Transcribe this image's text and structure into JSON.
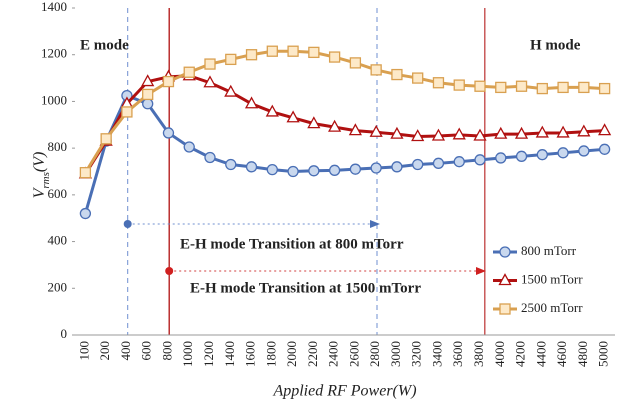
{
  "chart_data": {
    "type": "line",
    "y_label": {
      "main": "V",
      "sub": "rms",
      "rest": "(V)"
    },
    "x_label": "Applied RF Power(W)",
    "annotations": [
      "E mode",
      "H mode",
      "E-H mode Transition at 800 mTorr",
      "E-H mode Transition at 1500 mTorr"
    ],
    "categories": [
      "100",
      "200",
      "400",
      "600",
      "800",
      "1000",
      "1200",
      "1400",
      "1600",
      "1800",
      "2000",
      "2200",
      "2400",
      "2600",
      "2800",
      "3000",
      "3200",
      "3400",
      "3600",
      "3800",
      "4000",
      "4200",
      "4400",
      "4600",
      "4800",
      "5000"
    ],
    "series": [
      {
        "name": "800 mTorr",
        "color": "#4a6fb5",
        "marker": "circle",
        "marker_fill": "#c9d8ee",
        "values": [
          520,
          830,
          1025,
          990,
          865,
          805,
          760,
          730,
          720,
          708,
          700,
          703,
          705,
          710,
          715,
          720,
          730,
          735,
          742,
          750,
          758,
          765,
          772,
          780,
          788,
          795
        ]
      },
      {
        "name": "1500 mTorr",
        "color": "#b01010",
        "marker": "triangle",
        "marker_fill": "#ffffff",
        "values": [
          690,
          830,
          990,
          1085,
          1105,
          1110,
          1080,
          1040,
          990,
          955,
          930,
          905,
          890,
          875,
          868,
          860,
          850,
          852,
          857,
          852,
          860,
          860,
          865,
          865,
          870,
          875
        ]
      },
      {
        "name": "2500 mTorr",
        "color": "#d9a050",
        "marker": "square",
        "marker_fill": "#fde9c8",
        "values": [
          695,
          840,
          955,
          1030,
          1085,
          1125,
          1160,
          1180,
          1200,
          1215,
          1215,
          1210,
          1190,
          1165,
          1135,
          1115,
          1100,
          1080,
          1070,
          1065,
          1060,
          1065,
          1055,
          1060,
          1060,
          1055
        ]
      }
    ],
    "ylim": [
      0,
      1400
    ],
    "yticks": [
      0,
      200,
      400,
      600,
      800,
      1000,
      1200,
      1400
    ],
    "grid": false
  }
}
